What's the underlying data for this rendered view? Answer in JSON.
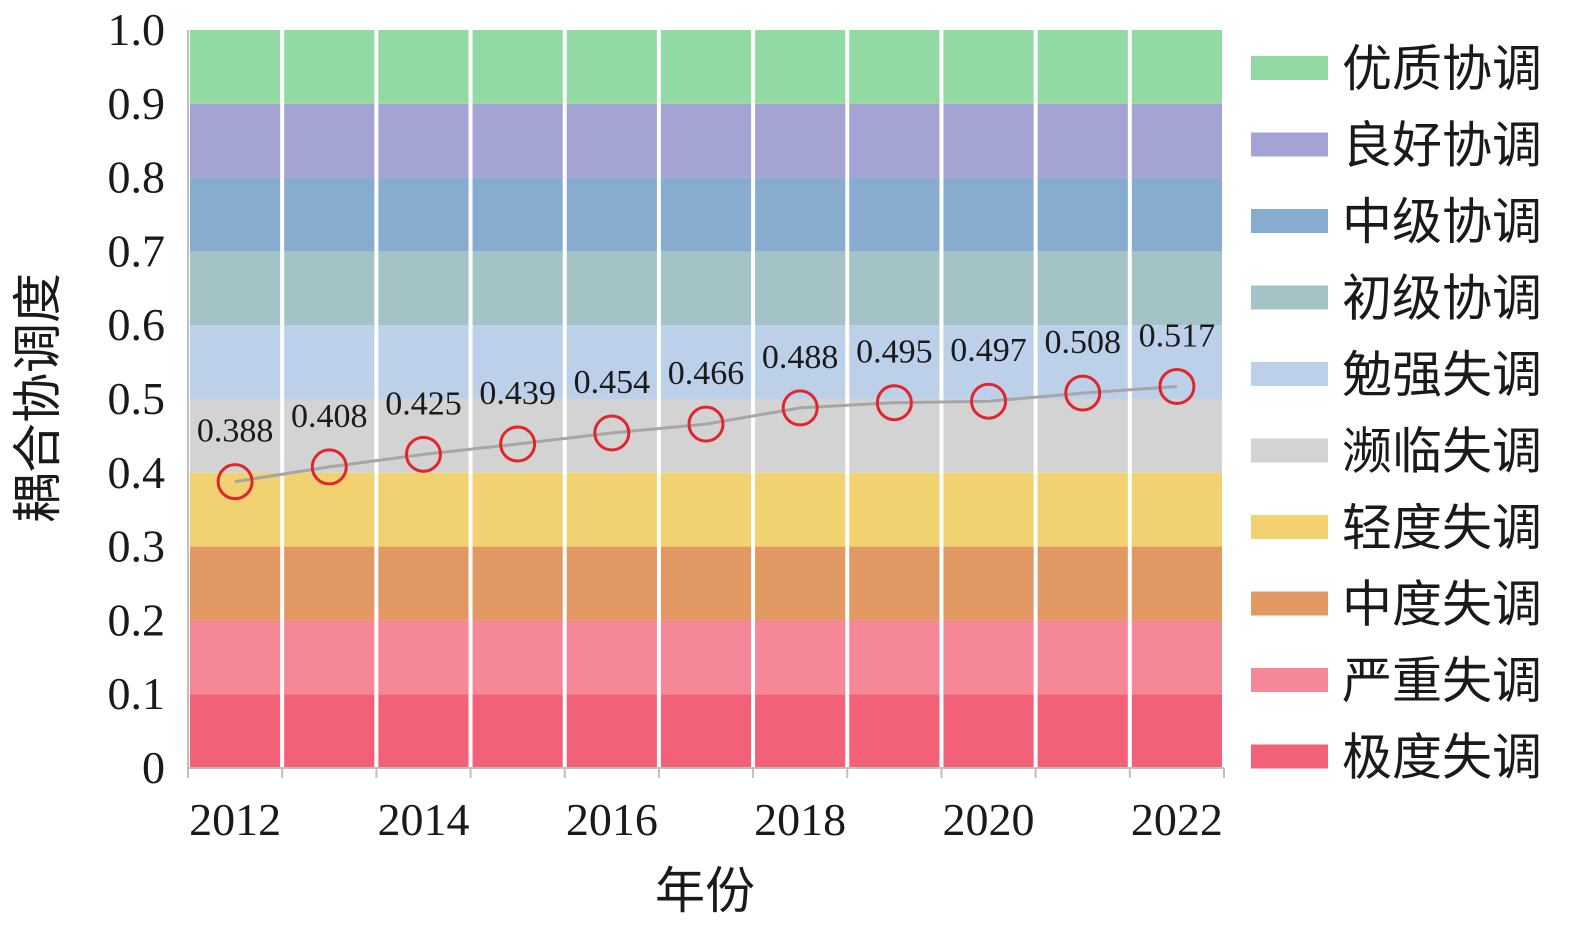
{
  "chart_data": {
    "type": "line",
    "xlabel": "年份",
    "ylabel": "耦合协调度",
    "ylim": [
      0,
      1.0
    ],
    "x": [
      2012,
      2013,
      2014,
      2015,
      2016,
      2017,
      2018,
      2019,
      2020,
      2021,
      2022
    ],
    "x_tick_labels": [
      "2012",
      "2014",
      "2016",
      "2018",
      "2020",
      "2022"
    ],
    "y_tick_labels": [
      "0",
      "0.1",
      "0.2",
      "0.3",
      "0.4",
      "0.5",
      "0.6",
      "0.7",
      "0.8",
      "0.9",
      "1.0"
    ],
    "series": [
      {
        "values": [
          0.388,
          0.408,
          0.425,
          0.439,
          0.454,
          0.466,
          0.488,
          0.495,
          0.497,
          0.508,
          0.517
        ],
        "labels": [
          "0.388",
          "0.408",
          "0.425",
          "0.439",
          "0.454",
          "0.466",
          "0.488",
          "0.495",
          "0.497",
          "0.508",
          "0.517"
        ],
        "line_color": "#a6a6a6",
        "marker_color": "#e0262c"
      }
    ],
    "bands": [
      {
        "name": "极度失调",
        "from": 0.0,
        "to": 0.1,
        "color": "#f26178"
      },
      {
        "name": "严重失调",
        "from": 0.1,
        "to": 0.2,
        "color": "#f58799"
      },
      {
        "name": "中度失调",
        "from": 0.2,
        "to": 0.3,
        "color": "#e29862"
      },
      {
        "name": "轻度失调",
        "from": 0.3,
        "to": 0.4,
        "color": "#f2d170"
      },
      {
        "name": "濒临失调",
        "from": 0.4,
        "to": 0.5,
        "color": "#d3d3d3"
      },
      {
        "name": "勉强失调",
        "from": 0.5,
        "to": 0.6,
        "color": "#bcd0ea"
      },
      {
        "name": "初级协调",
        "from": 0.6,
        "to": 0.7,
        "color": "#a3c3c7"
      },
      {
        "name": "中级协调",
        "from": 0.7,
        "to": 0.8,
        "color": "#87accf"
      },
      {
        "name": "良好协调",
        "from": 0.8,
        "to": 0.9,
        "color": "#a4a4d4"
      },
      {
        "name": "优质协调",
        "from": 0.9,
        "to": 1.0,
        "color": "#93d9a4"
      }
    ],
    "legend_order": [
      "优质协调",
      "良好协调",
      "中级协调",
      "初级协调",
      "勉强失调",
      "濒临失调",
      "轻度失调",
      "中度失调",
      "严重失调",
      "极度失调"
    ],
    "legend_position": "right",
    "grid": false
  }
}
